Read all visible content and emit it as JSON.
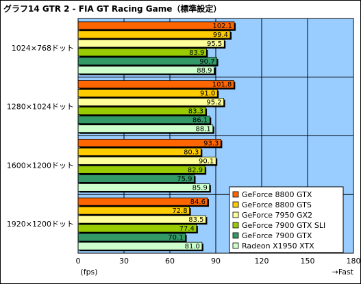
{
  "title": "グラフ14  GTR 2 - FIA GT Racing Game（標準設定）",
  "chart_data": {
    "type": "bar",
    "orientation": "horizontal",
    "title": "グラフ14  GTR 2 - FIA GT Racing Game（標準設定）",
    "categories": [
      "1024×768ドット",
      "1280×1024ドット",
      "1600×1200ドット",
      "1920×1200ドット"
    ],
    "series": [
      {
        "name": "GeForce 8800 GTX",
        "color": "#ff6600",
        "values": [
          102.1,
          101.8,
          93.3,
          84.6
        ]
      },
      {
        "name": "GeForce 8800 GTS",
        "color": "#ffcc00",
        "values": [
          99.4,
          91.0,
          80.3,
          72.8
        ]
      },
      {
        "name": "GeForce 7950 GX2",
        "color": "#ffff99",
        "values": [
          95.5,
          95.2,
          90.1,
          83.5
        ]
      },
      {
        "name": "GeForce 7900 GTX SLI",
        "color": "#99cc00",
        "values": [
          83.9,
          83.3,
          82.9,
          77.4
        ]
      },
      {
        "name": "GeForce 7900 GTX",
        "color": "#339966",
        "values": [
          90.7,
          86.1,
          75.9,
          70.1
        ]
      },
      {
        "name": "Radeon X1950 XTX",
        "color": "#ccffcc",
        "values": [
          88.9,
          88.1,
          85.9,
          81.0
        ]
      }
    ],
    "xlim": [
      0,
      180
    ],
    "xticks": [
      0,
      30,
      60,
      90,
      120,
      150,
      180
    ],
    "xlabel": "(fps)",
    "xlabel_right": "→Fast",
    "grid": true,
    "plot_background": "#99ccff",
    "legend_position": "bottom-right"
  }
}
